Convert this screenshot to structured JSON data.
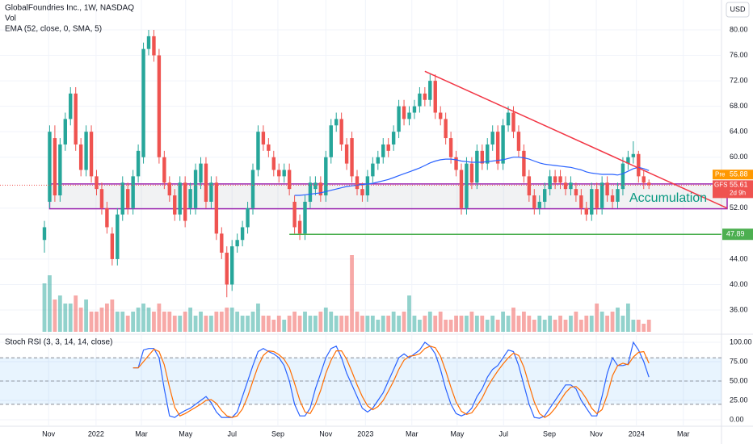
{
  "chart_data": {
    "type": "candlestick",
    "title": "GlobalFoundries Inc., 1W, NASDAQ",
    "volume_label": "Vol",
    "ema_label": "EMA (52, close, 0, SMA, 5)",
    "stoch_label": "Stoch RSI (3, 3, 14, 14, close)",
    "currency": "USD",
    "up_color": "#26a69a",
    "down_color": "#ef5350",
    "ema_color": "#2962ff",
    "k_color": "#2962ff",
    "d_color": "#ff6d00",
    "ylim": [
      30,
      82
    ],
    "yticks": [
      {
        "value": 80,
        "label": "80.00"
      },
      {
        "value": 76,
        "label": "76.00"
      },
      {
        "value": 72,
        "label": "72.00"
      },
      {
        "value": 68,
        "label": "68.00"
      },
      {
        "value": 64,
        "label": "64.00"
      },
      {
        "value": 60,
        "label": "60.00"
      },
      {
        "value": 52,
        "label": "52.00"
      },
      {
        "value": 44,
        "label": "44.00"
      },
      {
        "value": 40,
        "label": "40.00"
      },
      {
        "value": 36,
        "label": "36.00"
      }
    ],
    "xticks": [
      {
        "value": 0.8,
        "label": "Nov"
      },
      {
        "value": 9.9,
        "label": "2022"
      },
      {
        "value": 18.6,
        "label": "Mar"
      },
      {
        "value": 27.1,
        "label": "May"
      },
      {
        "value": 36,
        "label": "Jul"
      },
      {
        "value": 44.8,
        "label": "Sep"
      },
      {
        "value": 54,
        "label": "Nov"
      },
      {
        "value": 61.6,
        "label": "2023"
      },
      {
        "value": 70.5,
        "label": "Mar"
      },
      {
        "value": 79.2,
        "label": "May"
      },
      {
        "value": 88.1,
        "label": "Jul"
      },
      {
        "value": 96.9,
        "label": "Sep"
      },
      {
        "value": 105.9,
        "label": "Nov"
      },
      {
        "value": 113.6,
        "label": "2024"
      },
      {
        "value": 122.6,
        "label": "Mar"
      }
    ],
    "candles": [
      [
        47,
        50,
        45,
        49
      ],
      [
        53,
        65,
        52,
        64
      ],
      [
        63,
        65,
        53,
        54
      ],
      [
        54,
        63,
        53,
        62
      ],
      [
        62,
        67,
        61,
        66
      ],
      [
        66,
        71,
        65,
        70
      ],
      [
        70,
        71,
        61,
        62
      ],
      [
        62,
        63,
        57,
        58
      ],
      [
        58,
        65,
        57,
        64
      ],
      [
        64,
        65,
        56,
        57
      ],
      [
        57,
        58,
        54,
        55
      ],
      [
        55,
        56,
        51,
        52
      ],
      [
        52,
        53,
        48,
        49
      ],
      [
        48,
        49,
        43,
        44
      ],
      [
        44,
        52,
        43,
        51
      ],
      [
        51,
        57,
        50,
        56
      ],
      [
        55,
        56,
        51,
        52
      ],
      [
        52,
        58,
        51,
        57
      ],
      [
        57,
        62,
        56,
        61
      ],
      [
        60,
        78,
        59,
        77
      ],
      [
        77,
        80,
        76,
        79
      ],
      [
        79,
        80,
        75,
        76
      ],
      [
        76,
        77,
        59,
        60
      ],
      [
        60,
        61,
        55,
        56
      ],
      [
        56,
        57,
        53,
        54
      ],
      [
        54,
        55,
        50,
        51
      ],
      [
        51,
        57,
        50,
        56
      ],
      [
        56,
        57,
        49,
        50
      ],
      [
        52,
        56,
        51,
        55
      ],
      [
        52,
        59,
        51,
        58
      ],
      [
        56,
        60,
        55,
        59
      ],
      [
        59,
        60,
        52,
        53
      ],
      [
        53,
        57,
        52,
        56
      ],
      [
        56,
        57,
        47,
        48
      ],
      [
        48,
        49,
        44,
        45
      ],
      [
        45,
        46,
        38,
        40
      ],
      [
        40,
        47,
        39,
        46
      ],
      [
        46,
        48,
        45,
        47
      ],
      [
        47,
        50,
        46,
        49
      ],
      [
        49,
        53,
        48,
        52
      ],
      [
        52,
        59,
        51,
        58
      ],
      [
        58,
        65,
        57,
        64
      ],
      [
        64,
        65,
        61,
        62
      ],
      [
        62,
        63,
        60,
        61
      ],
      [
        60,
        61,
        57,
        58
      ],
      [
        58,
        59,
        56,
        57
      ],
      [
        57,
        59,
        56,
        58
      ],
      [
        58,
        59,
        54,
        55
      ],
      [
        53,
        54,
        48,
        49
      ],
      [
        50,
        51,
        47,
        48
      ],
      [
        48,
        54,
        47,
        53
      ],
      [
        53,
        57,
        52,
        56
      ],
      [
        55,
        57,
        54,
        56
      ],
      [
        56,
        57,
        53,
        54
      ],
      [
        54,
        61,
        53,
        60
      ],
      [
        60,
        66,
        59,
        65
      ],
      [
        65,
        67,
        64,
        66
      ],
      [
        66,
        67,
        61,
        62
      ],
      [
        62,
        63,
        58,
        59
      ],
      [
        63,
        64,
        56,
        57
      ],
      [
        57,
        58,
        54,
        55
      ],
      [
        55,
        56,
        53,
        54
      ],
      [
        54,
        58,
        53,
        57
      ],
      [
        57,
        60,
        56,
        59
      ],
      [
        59,
        61,
        58,
        60
      ],
      [
        60,
        63,
        59,
        62
      ],
      [
        62,
        63,
        60,
        61
      ],
      [
        62,
        65,
        61,
        64
      ],
      [
        64,
        69,
        63,
        68
      ],
      [
        68,
        69,
        65,
        66
      ],
      [
        66,
        68,
        65,
        67
      ],
      [
        67,
        69,
        66,
        68
      ],
      [
        68,
        71,
        67,
        70
      ],
      [
        70,
        71,
        68,
        69
      ],
      [
        69,
        73,
        68,
        72
      ],
      [
        72,
        73,
        66,
        67
      ],
      [
        67,
        68,
        65,
        66
      ],
      [
        66,
        67,
        62,
        63
      ],
      [
        63,
        64,
        59,
        60
      ],
      [
        60,
        61,
        57,
        58
      ],
      [
        58,
        59,
        51,
        52
      ],
      [
        52,
        60,
        51,
        59
      ],
      [
        59,
        60,
        55,
        56
      ],
      [
        56,
        62,
        55,
        61
      ],
      [
        61,
        62,
        58,
        59
      ],
      [
        59,
        63,
        58,
        62
      ],
      [
        62,
        65,
        61,
        64
      ],
      [
        64,
        65,
        58,
        59
      ],
      [
        59,
        66,
        58,
        65
      ],
      [
        65,
        68,
        64,
        67
      ],
      [
        67,
        68,
        63,
        64
      ],
      [
        64,
        65,
        60,
        61
      ],
      [
        61,
        62,
        56,
        57
      ],
      [
        57,
        58,
        53,
        54
      ],
      [
        54,
        55,
        51,
        52
      ],
      [
        52,
        54,
        51,
        53
      ],
      [
        53,
        56,
        52,
        55
      ],
      [
        55,
        58,
        54,
        57
      ],
      [
        57,
        58,
        55,
        56
      ],
      [
        57,
        58,
        55,
        56
      ],
      [
        56,
        57,
        54,
        55
      ],
      [
        55,
        57,
        54,
        56
      ],
      [
        55,
        56,
        53,
        54
      ],
      [
        54,
        55,
        51,
        52
      ],
      [
        52,
        53,
        50,
        51
      ],
      [
        51,
        56,
        50,
        55
      ],
      [
        55,
        56,
        51,
        52
      ],
      [
        52,
        57,
        51,
        56
      ],
      [
        56,
        57,
        53,
        54
      ],
      [
        54,
        55,
        52,
        53
      ],
      [
        53,
        56,
        52,
        55
      ],
      [
        55,
        60,
        54,
        59
      ],
      [
        59,
        61,
        58,
        60
      ],
      [
        60,
        62.5,
        59,
        60.5
      ],
      [
        60.5,
        61,
        56,
        57
      ],
      [
        57,
        58,
        55,
        56
      ],
      [
        56,
        56.5,
        55,
        55.61
      ]
    ],
    "volumes": [
      12,
      14,
      8,
      9,
      7,
      7,
      9,
      6,
      8,
      5,
      5,
      6,
      7,
      8,
      5,
      5,
      4,
      5,
      6,
      7,
      6,
      5,
      7,
      5,
      5,
      4,
      4,
      5,
      6,
      4,
      5,
      4,
      4,
      5,
      5,
      6,
      6,
      5,
      4,
      4,
      5,
      7,
      4,
      4,
      3,
      4,
      3,
      4,
      5,
      4,
      5,
      4,
      4,
      5,
      6,
      5,
      4,
      4,
      4,
      19,
      5,
      4,
      4,
      4,
      3,
      4,
      4,
      5,
      4,
      5,
      9,
      4,
      3,
      4,
      5,
      4,
      5,
      3,
      3,
      4,
      4,
      4,
      5,
      4,
      4,
      3,
      4,
      3,
      5,
      4,
      6,
      4,
      5,
      4,
      3,
      4,
      3,
      4,
      3,
      4,
      3,
      4,
      5,
      3,
      4,
      4,
      7,
      5,
      4,
      5,
      6,
      4,
      7,
      3,
      3,
      2,
      3
    ],
    "ema": [
      null,
      null,
      null,
      null,
      null,
      null,
      null,
      null,
      null,
      null,
      null,
      null,
      null,
      null,
      null,
      null,
      null,
      null,
      null,
      null,
      null,
      null,
      null,
      null,
      null,
      null,
      null,
      null,
      null,
      null,
      null,
      null,
      null,
      null,
      null,
      null,
      null,
      null,
      null,
      null,
      null,
      null,
      null,
      null,
      null,
      null,
      null,
      null,
      54.0,
      54.0,
      54.1,
      54.2,
      54.3,
      54.4,
      54.6,
      54.8,
      55.0,
      55.2,
      55.4,
      55.5,
      55.6,
      55.7,
      55.8,
      55.9,
      56.1,
      56.3,
      56.5,
      56.8,
      57.1,
      57.4,
      57.7,
      58.0,
      58.3,
      58.7,
      59.1,
      59.4,
      59.6,
      59.7,
      59.7,
      59.6,
      59.4,
      59.3,
      59.2,
      59.2,
      59.2,
      59.3,
      59.4,
      59.5,
      59.6,
      59.8,
      60.0,
      60.0,
      59.9,
      59.7,
      59.4,
      59.1,
      58.9,
      58.8,
      58.7,
      58.6,
      58.5,
      58.4,
      58.2,
      58.0,
      57.7,
      57.5,
      57.4,
      57.3,
      57.3,
      57.3,
      57.2,
      57.4,
      57.8,
      58.2,
      58.4,
      58.2,
      57.9
    ],
    "stoch_k": [
      null,
      null,
      null,
      null,
      null,
      null,
      null,
      null,
      null,
      null,
      null,
      null,
      null,
      null,
      null,
      null,
      null,
      67,
      67,
      90,
      92,
      92,
      80,
      40,
      5,
      3,
      8,
      12,
      15,
      20,
      25,
      30,
      22,
      10,
      3,
      3,
      3,
      10,
      30,
      50,
      70,
      88,
      92,
      88,
      85,
      80,
      70,
      50,
      20,
      5,
      5,
      15,
      40,
      60,
      80,
      92,
      95,
      80,
      60,
      45,
      30,
      15,
      10,
      15,
      25,
      35,
      50,
      65,
      80,
      85,
      80,
      85,
      90,
      100,
      95,
      85,
      65,
      40,
      20,
      8,
      5,
      8,
      15,
      30,
      40,
      55,
      65,
      70,
      80,
      90,
      88,
      70,
      45,
      20,
      3,
      2,
      5,
      15,
      25,
      35,
      45,
      45,
      40,
      25,
      15,
      5,
      5,
      30,
      60,
      80,
      70,
      70,
      72,
      100,
      90,
      75,
      55
    ],
    "stoch_d": [
      null,
      null,
      null,
      null,
      null,
      null,
      null,
      null,
      null,
      null,
      null,
      null,
      null,
      null,
      null,
      null,
      null,
      67,
      67,
      75,
      83,
      91,
      88,
      71,
      42,
      16,
      5,
      8,
      12,
      16,
      20,
      25,
      26,
      21,
      12,
      5,
      3,
      5,
      14,
      30,
      50,
      69,
      83,
      89,
      88,
      84,
      78,
      67,
      47,
      25,
      10,
      8,
      20,
      38,
      60,
      77,
      89,
      89,
      78,
      62,
      45,
      30,
      18,
      13,
      17,
      25,
      37,
      50,
      65,
      77,
      82,
      83,
      85,
      92,
      95,
      93,
      82,
      63,
      42,
      23,
      11,
      7,
      9,
      18,
      28,
      42,
      53,
      63,
      72,
      80,
      86,
      83,
      68,
      45,
      23,
      8,
      3,
      7,
      15,
      25,
      35,
      42,
      43,
      37,
      27,
      15,
      8,
      13,
      32,
      57,
      70,
      73,
      71,
      81,
      87,
      88,
      73
    ],
    "stoch_ylim": [
      -5,
      105
    ],
    "stoch_yticks": [
      {
        "value": 100,
        "label": "100.00"
      },
      {
        "value": 75,
        "label": "75.00"
      },
      {
        "value": 50,
        "label": "50.00"
      },
      {
        "value": 25,
        "label": "25.00"
      },
      {
        "value": 0,
        "label": "0.00"
      }
    ],
    "stoch_levels": [
      80,
      50,
      20
    ],
    "trendline": {
      "from_index": 73,
      "from_price": 73.5,
      "to_index": 131,
      "to_price": 52
    },
    "zone": {
      "from_index": 1,
      "top": 55.8,
      "bottom": 51.9
    },
    "support": {
      "from_index": 47,
      "value": 47.89
    },
    "annotation": "Accumulation",
    "premarket": {
      "label": "Pre",
      "value": 55.88
    },
    "last": {
      "label": "GFS",
      "value": 55.61,
      "countdown": "2d 9h"
    }
  }
}
